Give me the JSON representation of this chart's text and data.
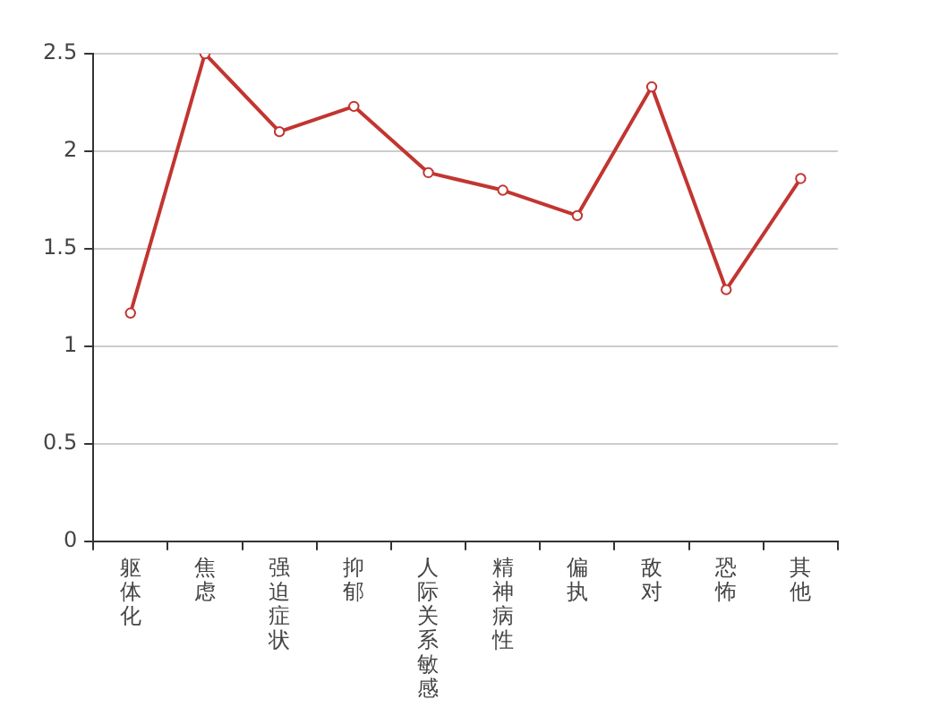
{
  "chart_data": {
    "type": "line",
    "categories": [
      "躯体化",
      "焦虑",
      "强迫症状",
      "抑郁",
      "人际关系敏感",
      "精神病性",
      "偏执",
      "敌对",
      "恐怖",
      "其他"
    ],
    "series": [
      {
        "color": "#c23531",
        "values": [
          1.17,
          2.5,
          2.1,
          2.23,
          1.89,
          1.8,
          1.67,
          2.33,
          1.29,
          1.86
        ]
      }
    ],
    "ylim": [
      0,
      2.5
    ],
    "yticks": [
      0,
      0.5,
      1,
      1.5,
      2,
      2.5
    ],
    "grid": "y",
    "marker": "circle"
  }
}
